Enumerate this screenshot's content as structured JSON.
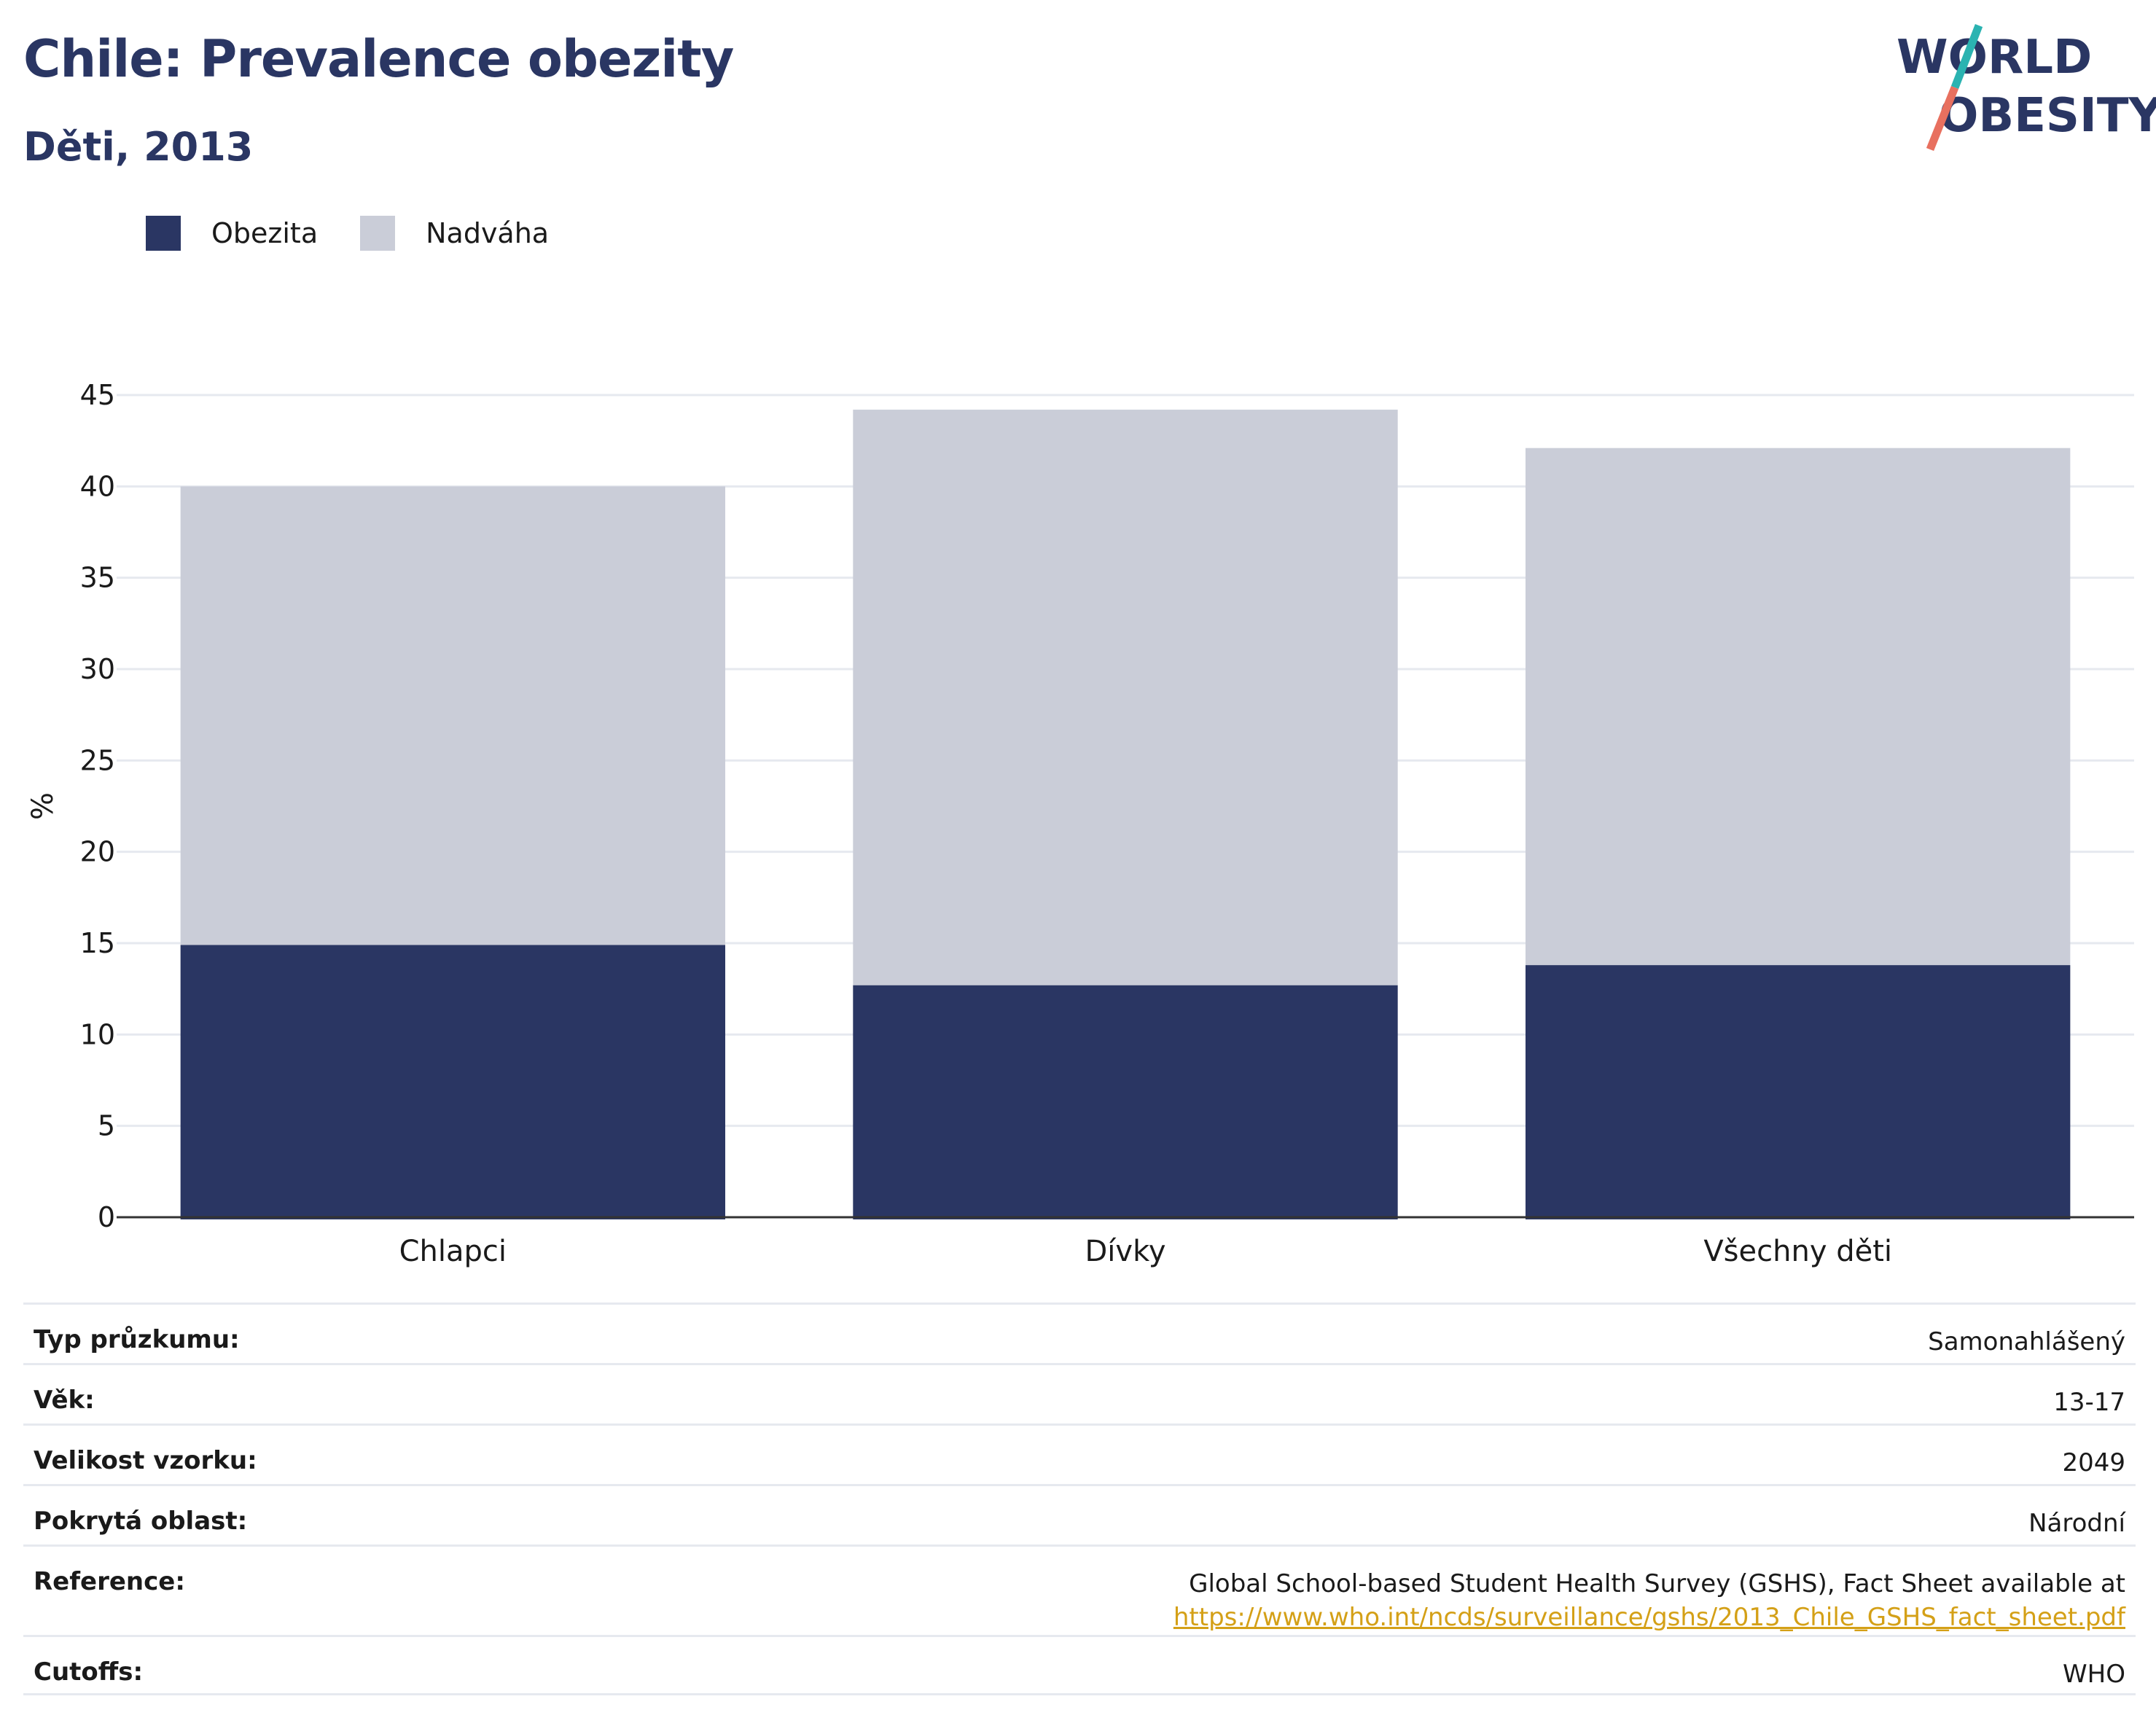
{
  "header": {
    "title": "Chile: Prevalence obezity",
    "subtitle": "Děti, 2013"
  },
  "logo": {
    "line1": "WORLD",
    "line2": "OBESITY",
    "colors": {
      "text": "#2a3663",
      "slash_top": "#2bb3b1",
      "slash_bottom": "#e8705f"
    }
  },
  "legend": {
    "items": [
      {
        "label": "Obezita",
        "color": "#2a3663"
      },
      {
        "label": "Nadváha",
        "color": "#cacdd8"
      }
    ]
  },
  "chart_data": {
    "type": "bar",
    "stacked": true,
    "categories": [
      "Chlapci",
      "Dívky",
      "Všechny děti"
    ],
    "series": [
      {
        "name": "Obezita",
        "color": "#2a3663",
        "values": [
          14.9,
          12.7,
          13.8
        ]
      },
      {
        "name": "Nadváha",
        "color": "#cacdd8",
        "values": [
          25.1,
          31.5,
          28.3
        ]
      }
    ],
    "ylabel": "%",
    "xlabel": "",
    "ylim": [
      0,
      45
    ],
    "yticks": [
      0,
      5,
      10,
      15,
      20,
      25,
      30,
      35,
      40,
      45
    ],
    "grid": true,
    "legend_position": "top-left"
  },
  "info": {
    "survey_type_label": "Typ průzkumu:",
    "survey_type_value": "Samonahlášený",
    "age_label": "Věk:",
    "age_value": "13-17",
    "sample_size_label": "Velikost vzorku:",
    "sample_size_value": "2049",
    "area_label": "Pokrytá oblast:",
    "area_value": "Národní",
    "reference_label": "Reference:",
    "reference_text": "Global School-based Student Health Survey (GSHS), Fact Sheet available at",
    "reference_link": "https://www.who.int/ncds/surveillance/gshs/2013_Chile_GSHS_fact_sheet.pdf",
    "cutoffs_label": "Cutoffs:",
    "cutoffs_value": "WHO"
  }
}
